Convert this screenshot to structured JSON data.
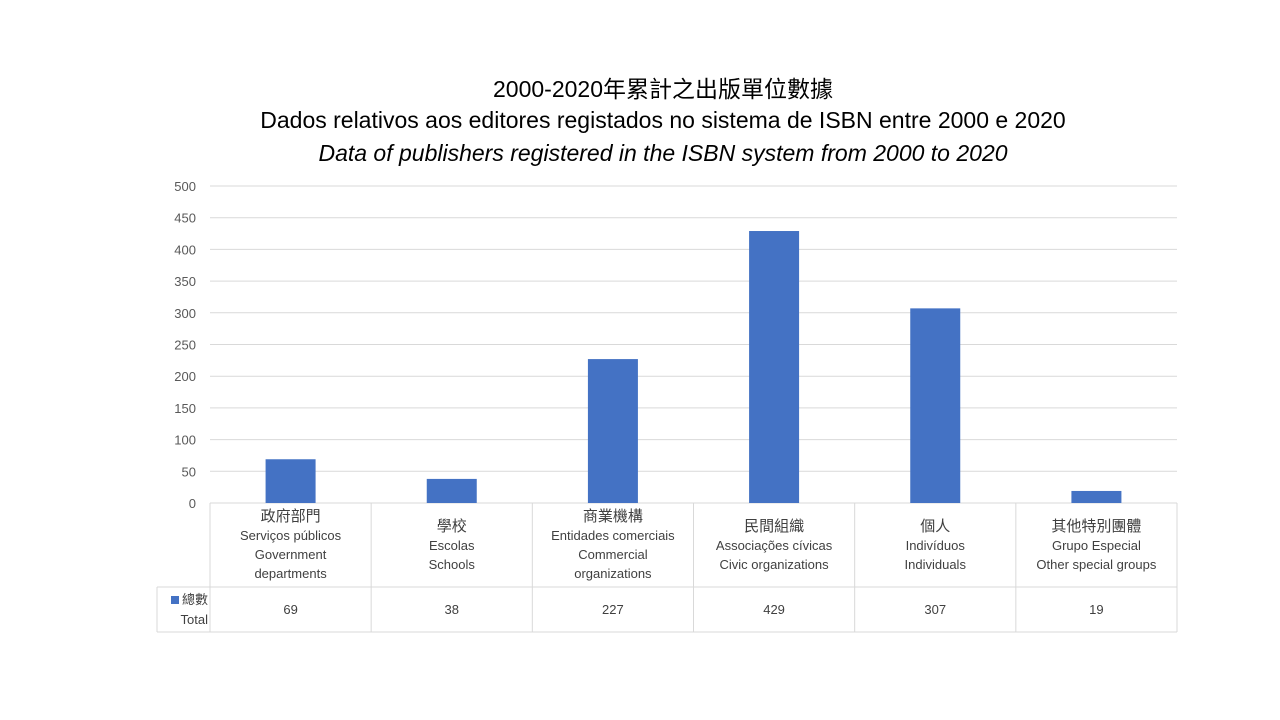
{
  "chart_data": {
    "type": "bar",
    "title": "2000-2020年累計之出版單位數據",
    "subtitle": "Dados relativos aos editores registados no sistema de ISBN entre 2000 e 2020",
    "subtitle2": "Data of publishers registered in the ISBN system from 2000 to 2020",
    "categories": [
      [
        "政府部門",
        "Serviços públicos",
        "Government",
        "departments"
      ],
      [
        "學校",
        "Escolas",
        "Schools"
      ],
      [
        "商業機構",
        "Entidades comerciais",
        "Commercial",
        "organizations"
      ],
      [
        "民間組織",
        "Associações cívicas",
        "Civic organizations"
      ],
      [
        "個人",
        "Indivíduos",
        "Individuals"
      ],
      [
        "其他特別團體",
        "Grupo  Especial",
        "Other special groups"
      ]
    ],
    "series": [
      {
        "name": "總數",
        "name_en": "Total",
        "values": [
          69,
          38,
          227,
          429,
          307,
          19
        ],
        "color": "#4472c4"
      }
    ],
    "ylim": [
      0,
      500
    ],
    "yticks": [
      0,
      50,
      100,
      150,
      200,
      250,
      300,
      350,
      400,
      450,
      500
    ],
    "grid": true,
    "legend": "data-table"
  }
}
